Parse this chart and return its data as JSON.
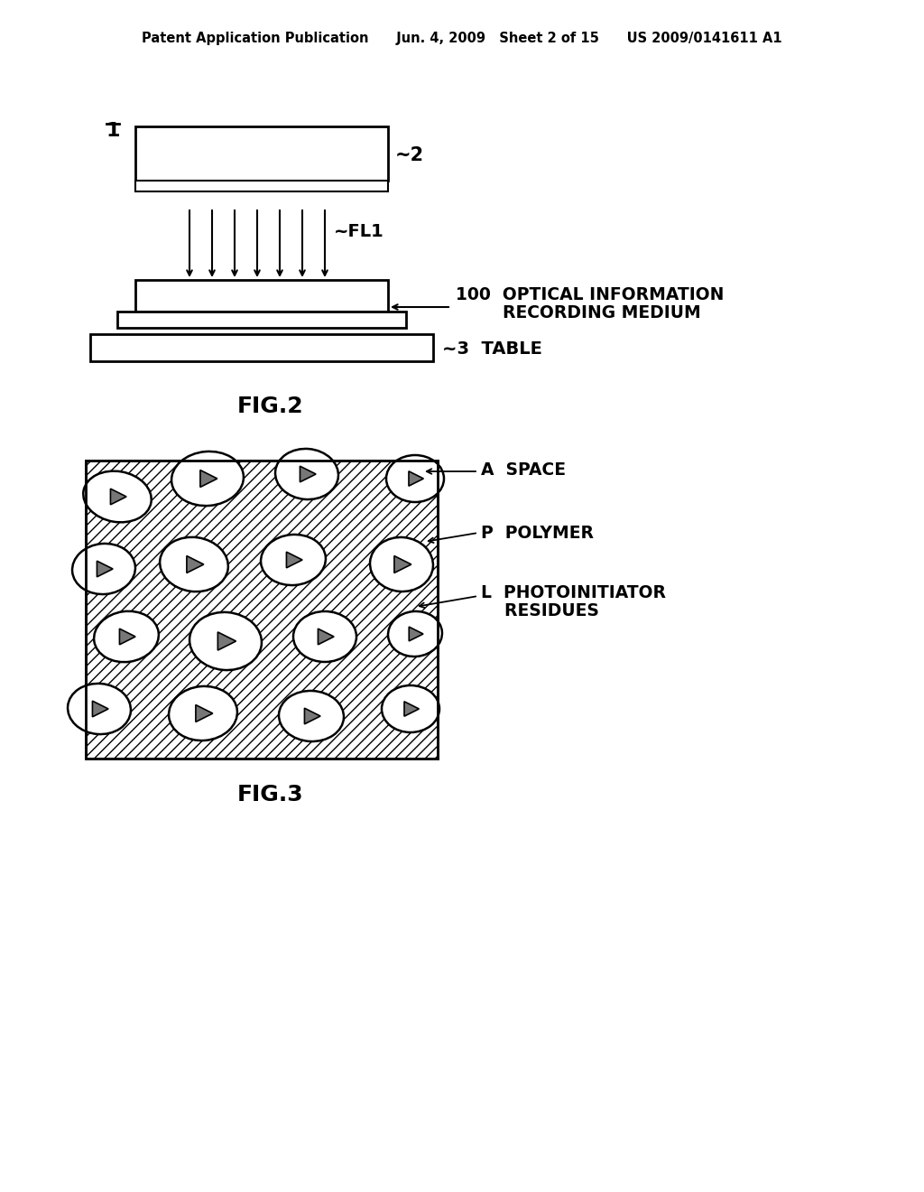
{
  "bg_color": "#ffffff",
  "header_text": "Patent Application Publication    Jun. 4, 2009  Sheet 2 of 15    US 2009/0141611 A1",
  "fig2_label": "FIG.2",
  "fig3_label": "FIG.3",
  "label_1": "1",
  "label_2": "2",
  "label_fl1": "~FL1",
  "label_100": "100  OPTICAL INFORMATION\n          RECORDING MEDIUM",
  "label_3": "~3  TABLE",
  "label_A": "A  SPACE",
  "label_P": "P  POLYMER",
  "label_L": "L  PHOTOINITIATOR\n      RESIDUES",
  "hatch_color": "#555555",
  "hatch_pattern": "/",
  "box_color": "#000000",
  "arrow_color": "#000000",
  "triangle_fill": "#888888"
}
